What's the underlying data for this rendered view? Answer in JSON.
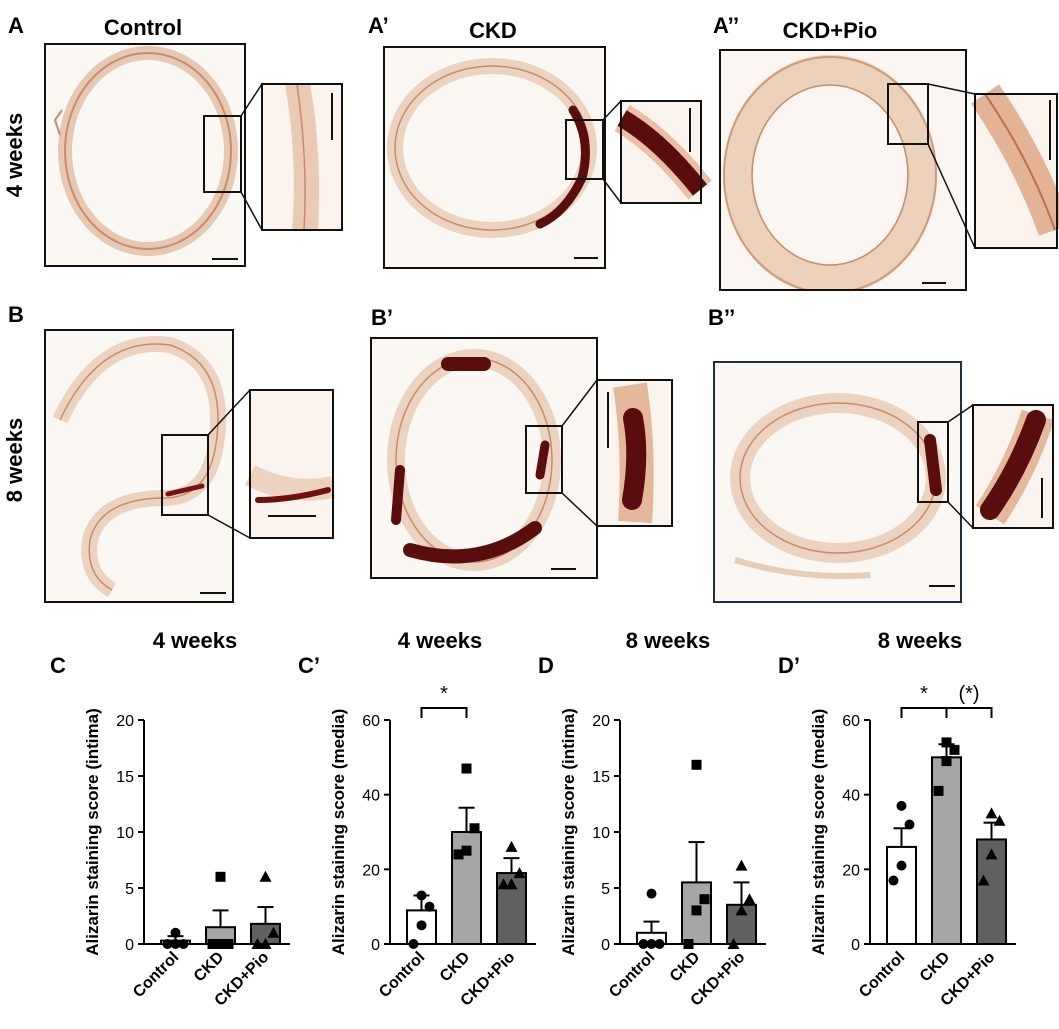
{
  "figure": {
    "panel_labels": {
      "A": "A",
      "A1": "A’",
      "A2": "A’’",
      "B": "B",
      "B1": "B’",
      "B2": "B’’"
    },
    "column_titles": [
      "Control",
      "CKD",
      "CKD+Pio"
    ],
    "row_labels": [
      "4 weeks",
      "8 weeks"
    ],
    "colors": {
      "tissue": "#e9cdb6",
      "tissue_edge": "#c98b6a",
      "calcification": "#5a0d0d",
      "frame": "#111111",
      "frame_blue": "#1c2e4a"
    },
    "micrographs": [
      {
        "panel": "A",
        "group": "Control",
        "timepoint": "4 weeks",
        "calcification": "none"
      },
      {
        "panel": "A’",
        "group": "CKD",
        "timepoint": "4 weeks",
        "calcification": "dense"
      },
      {
        "panel": "A’’",
        "group": "CKD+Pio",
        "timepoint": "4 weeks",
        "calcification": "none"
      },
      {
        "panel": "B",
        "group": "Control",
        "timepoint": "8 weeks",
        "calcification": "small"
      },
      {
        "panel": "B’",
        "group": "CKD",
        "timepoint": "8 weeks",
        "calcification": "dense"
      },
      {
        "panel": "B’’",
        "group": "CKD+Pio",
        "timepoint": "8 weeks",
        "calcification": "dense"
      }
    ]
  },
  "chart_data": [
    {
      "panel": "C",
      "type": "bar",
      "title": "4 weeks",
      "ylabel": "Alizarin staining score (intima)",
      "xlabel": "",
      "ylim": [
        0,
        20
      ],
      "yticks": [
        0,
        5,
        10,
        15,
        20
      ],
      "categories": [
        "Control",
        "CKD",
        "CKD+Pio"
      ],
      "values": [
        0.3,
        1.5,
        1.8
      ],
      "sem": [
        0.4,
        1.5,
        1.5
      ],
      "bar_colors": [
        "#ffffff",
        "#a6a6a6",
        "#606060"
      ],
      "markers": [
        "circle",
        "square",
        "triangle"
      ],
      "points": [
        [
          0,
          0,
          0,
          1
        ],
        [
          0,
          0,
          0,
          6
        ],
        [
          0,
          0,
          1,
          6
        ]
      ],
      "significance": []
    },
    {
      "panel": "C’",
      "type": "bar",
      "title": "4 weeks",
      "ylabel": "Alizarin staining score (media)",
      "xlabel": "",
      "ylim": [
        0,
        60
      ],
      "yticks": [
        0,
        20,
        40,
        60
      ],
      "categories": [
        "Control",
        "CKD",
        "CKD+Pio"
      ],
      "values": [
        9,
        30,
        19
      ],
      "sem": [
        4,
        6.5,
        4
      ],
      "bar_colors": [
        "#ffffff",
        "#a6a6a6",
        "#606060"
      ],
      "markers": [
        "circle",
        "square",
        "triangle"
      ],
      "points": [
        [
          0,
          5,
          10,
          13
        ],
        [
          24,
          25,
          31,
          47
        ],
        [
          16,
          16,
          19,
          26
        ]
      ],
      "significance": [
        {
          "from": 0,
          "to": 1,
          "label": "*"
        }
      ]
    },
    {
      "panel": "D",
      "type": "bar",
      "title": "8 weeks",
      "ylabel": "Alizarin staining score (intima)",
      "xlabel": "",
      "ylim": [
        0,
        20
      ],
      "yticks": [
        0,
        5,
        10,
        15,
        20
      ],
      "categories": [
        "Control",
        "CKD",
        "CKD+Pio"
      ],
      "values": [
        1,
        5.5,
        3.5
      ],
      "sem": [
        1,
        3.6,
        2
      ],
      "bar_colors": [
        "#ffffff",
        "#a6a6a6",
        "#606060"
      ],
      "markers": [
        "circle",
        "square",
        "triangle"
      ],
      "points": [
        [
          0,
          0,
          0,
          4.5
        ],
        [
          0,
          3,
          4,
          16
        ],
        [
          0,
          3,
          4,
          7
        ]
      ],
      "significance": []
    },
    {
      "panel": "D’",
      "type": "bar",
      "title": "8 weeks",
      "ylabel": "Alizarin staining score (media)",
      "xlabel": "",
      "ylim": [
        0,
        60
      ],
      "yticks": [
        0,
        20,
        40,
        60
      ],
      "categories": [
        "Control",
        "CKD",
        "CKD+Pio"
      ],
      "values": [
        26,
        50,
        28
      ],
      "sem": [
        5,
        3.5,
        4.5
      ],
      "bar_colors": [
        "#ffffff",
        "#a6a6a6",
        "#606060"
      ],
      "markers": [
        "circle",
        "square",
        "triangle"
      ],
      "points": [
        [
          17,
          21,
          32,
          37
        ],
        [
          41,
          49,
          52,
          54
        ],
        [
          17,
          24,
          33,
          35
        ]
      ],
      "significance": [
        {
          "from": 0,
          "to": 1,
          "label": "*"
        },
        {
          "from": 1,
          "to": 2,
          "label": "(*)"
        }
      ]
    }
  ]
}
